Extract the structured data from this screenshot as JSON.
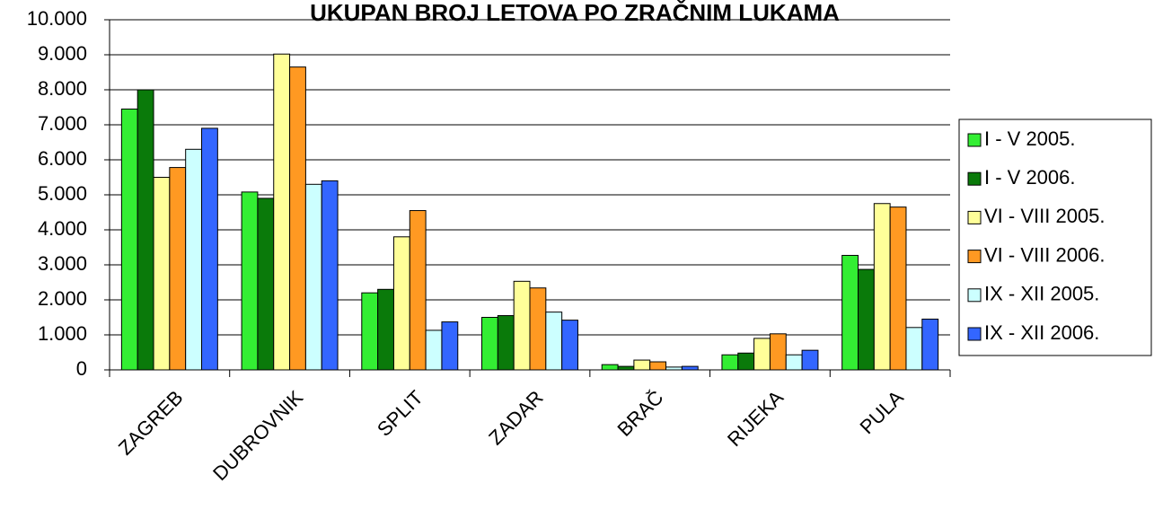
{
  "chart_data": {
    "type": "bar",
    "title": "UKUPAN BROJ LETOVA PO ZRAČNIM LUKAMA",
    "categories": [
      "ZAGREB",
      "DUBROVNIK",
      "SPLIT",
      "ZADAR",
      "BRAČ",
      "RIJEKA",
      "PULA"
    ],
    "series": [
      {
        "name": "I - V 2005.",
        "color": "#33ee33",
        "values": [
          7450,
          5080,
          2200,
          1500,
          150,
          430,
          3270
        ]
      },
      {
        "name": "I - V 2006.",
        "color": "#0a7a0a",
        "values": [
          8000,
          4900,
          2300,
          1550,
          100,
          480,
          2870
        ]
      },
      {
        "name": "VI - VIII 2005.",
        "color": "#ffff99",
        "values": [
          5500,
          9020,
          3800,
          2530,
          280,
          900,
          4750
        ]
      },
      {
        "name": "VI - VIII 2006.",
        "color": "#ff9922",
        "values": [
          5780,
          8650,
          4550,
          2340,
          230,
          1030,
          4650
        ]
      },
      {
        "name": "IX - XII 2005.",
        "color": "#ccffff",
        "values": [
          6300,
          5300,
          1130,
          1650,
          80,
          430,
          1210
        ]
      },
      {
        "name": "IX - XII 2006.",
        "color": "#3366ff",
        "values": [
          6900,
          5400,
          1370,
          1420,
          100,
          560,
          1450
        ]
      }
    ],
    "ylim": [
      0,
      10000
    ],
    "yticks": [
      0,
      {
        "value": 1000,
        "label": "1.000"
      },
      {
        "value": 2000,
        "label": "2.000"
      },
      {
        "value": 3000,
        "label": "3.000"
      },
      {
        "value": 4000,
        "label": "4.000"
      },
      {
        "value": 5000,
        "label": "5.000"
      },
      {
        "value": 6000,
        "label": "6.000"
      },
      {
        "value": 7000,
        "label": "7.000"
      },
      {
        "value": 8000,
        "label": "8.000"
      },
      {
        "value": 9000,
        "label": "9.000"
      },
      {
        "value": 10000,
        "label": "10.000"
      }
    ],
    "grid": true,
    "legend": "right"
  }
}
